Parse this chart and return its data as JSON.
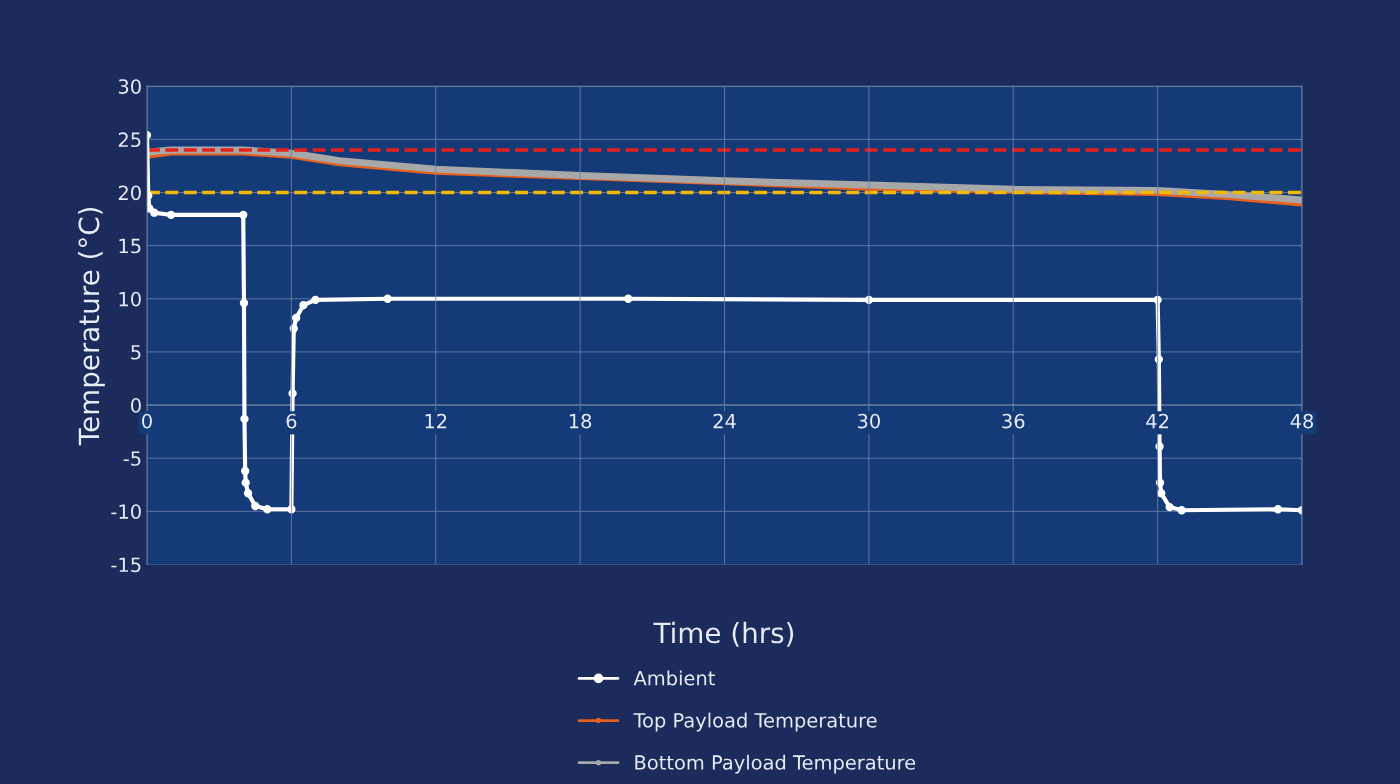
{
  "chart_data": {
    "type": "line",
    "xlabel": "Time (hrs)",
    "ylabel": "Temperature (°C)",
    "xlim": [
      0,
      48
    ],
    "xticks": [
      0,
      6,
      12,
      18,
      24,
      30,
      36,
      42,
      48
    ],
    "ylim": [
      -15,
      30
    ],
    "yticks": [
      -15,
      -10,
      -5,
      0,
      5,
      10,
      15,
      20,
      25,
      30
    ],
    "grid": true,
    "legend": "bottom",
    "series": [
      {
        "name": "Ambient",
        "color": "#ffffff",
        "marker": "circle",
        "x": [
          0,
          0.05,
          0.1,
          0.3,
          1,
          4,
          4.03,
          4.05,
          4.08,
          4.1,
          4.2,
          4.5,
          5,
          6,
          6.05,
          6.1,
          6.2,
          6.5,
          7,
          10,
          20,
          30,
          42,
          42.05,
          42.08,
          42.1,
          42.15,
          42.5,
          43,
          47,
          48
        ],
        "values": [
          25.4,
          19.7,
          18.5,
          18.1,
          17.9,
          17.9,
          9.6,
          -1.3,
          -6.2,
          -7.3,
          -8.3,
          -9.5,
          -9.8,
          -9.8,
          1.1,
          7.2,
          8.2,
          9.4,
          9.9,
          10,
          10,
          9.9,
          9.9,
          4.3,
          -3.9,
          -7.3,
          -8.3,
          -9.6,
          -9.9,
          -9.8,
          -9.9
        ]
      },
      {
        "name": "Top Payload Temperature",
        "color": "#e8601c",
        "marker": "circle",
        "x": [
          0,
          1,
          4,
          6,
          8,
          12,
          18,
          24,
          30,
          36,
          42,
          45,
          48
        ],
        "values": [
          23.5,
          23.8,
          23.8,
          23.5,
          22.8,
          22,
          21.5,
          21,
          20.5,
          20.2,
          20,
          19.6,
          19
        ]
      },
      {
        "name": "Bottom Payload Temperature",
        "color": "#a8a8a8",
        "marker": "circle",
        "x": [
          0,
          1,
          4,
          6,
          8,
          12,
          18,
          24,
          30,
          36,
          42,
          45,
          48
        ],
        "values": [
          23.8,
          24,
          24,
          23.7,
          23,
          22.2,
          21.6,
          21.1,
          20.7,
          20.3,
          20.2,
          19.8,
          19.3
        ]
      }
    ],
    "ref_lines": [
      {
        "axis": "y",
        "value": 24,
        "color": "#e8201c",
        "line_style": "dashed"
      },
      {
        "axis": "y",
        "value": 20,
        "color": "#f5b800",
        "line_style": "dashed"
      }
    ]
  }
}
